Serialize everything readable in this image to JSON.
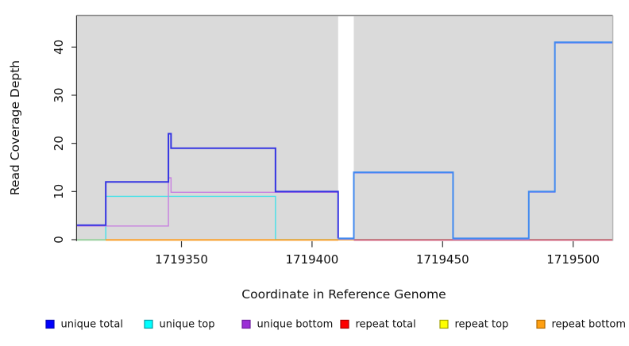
{
  "chart_data": {
    "type": "line",
    "subtype": "step-coverage",
    "title": "",
    "xlabel": "Coordinate in Reference Genome",
    "ylabel": "Read Coverage Depth",
    "xlim": [
      1719310,
      1719515
    ],
    "ylim": [
      0,
      46.5
    ],
    "x_ticks": [
      1719350,
      1719400,
      1719450,
      1719500
    ],
    "y_ticks": [
      0,
      10,
      20,
      30,
      40
    ],
    "grid": false,
    "legend_position": "bottom",
    "plot_background": "#dadada",
    "masked_region": {
      "x_start": 1719410,
      "x_end": 1719416,
      "color": "#ffffff"
    },
    "series": [
      {
        "name": "unique total",
        "legend_color": "#0000fe",
        "legend_border": "#0909b4",
        "line_color": "#3535e2",
        "line_color_right": "#4189f0",
        "line_width": 2,
        "steps": [
          [
            1719310,
            3
          ],
          [
            1719321,
            12
          ],
          [
            1719345,
            22
          ],
          [
            1719346,
            19
          ],
          [
            1719386,
            10
          ],
          [
            1719410,
            0
          ],
          [
            1719416,
            14
          ],
          [
            1719454,
            0
          ],
          [
            1719483,
            10
          ],
          [
            1719493,
            41
          ]
        ],
        "x_end": 1719515
      },
      {
        "name": "unique top",
        "legend_color": "#00ffff",
        "legend_border": "#0a9aa0",
        "line_color": "#45e2e8",
        "line_width": 1.4,
        "steps": [
          [
            1719310,
            0
          ],
          [
            1719321,
            9
          ],
          [
            1719386,
            0
          ]
        ],
        "x_end": 1719515
      },
      {
        "name": "unique bottom",
        "legend_color": "#9b2fd6",
        "legend_border": "#6e1f9e",
        "line_color": "#c77fe0",
        "line_color_right": "#9f97ee",
        "line_width": 1.4,
        "steps": [
          [
            1719310,
            3
          ],
          [
            1719345,
            13
          ],
          [
            1719346,
            10
          ],
          [
            1719410,
            0
          ],
          [
            1719416,
            14
          ],
          [
            1719454,
            0
          ],
          [
            1719483,
            10
          ],
          [
            1719493,
            41
          ]
        ],
        "x_end": 1719515
      },
      {
        "name": "repeat total",
        "legend_color": "#fe0000",
        "legend_border": "#a80000",
        "line_color": "#d0506e",
        "line_width": 1.4,
        "steps": [
          [
            1719310,
            0
          ]
        ],
        "x_end": 1719515
      },
      {
        "name": "repeat top",
        "legend_color": "#ffff00",
        "legend_border": "#a0a000",
        "line_color": "#e8e84a",
        "line_width": 1.4,
        "steps": [
          [
            1719310,
            0
          ]
        ],
        "x_end": 1719515
      },
      {
        "name": "repeat bottom",
        "legend_color": "#ffa012",
        "legend_border": "#b26a00",
        "line_color": "#ff9d1e",
        "line_width": 1.6,
        "steps": [
          [
            1719310,
            0
          ]
        ],
        "x_end": 1719515
      }
    ],
    "zero_line_segments": [
      {
        "x_start": 1719310,
        "x_end": 1719321,
        "color": "#9fd6a4"
      },
      {
        "x_start": 1719321,
        "x_end": 1719410,
        "color": "#ff9d1e"
      },
      {
        "x_start": 1719416,
        "x_end": 1719515,
        "color": "#d0506e"
      }
    ]
  },
  "legend": {
    "items": [
      {
        "label": "unique total"
      },
      {
        "label": "unique top"
      },
      {
        "label": "unique bottom"
      },
      {
        "label": "repeat total"
      },
      {
        "label": "repeat top"
      },
      {
        "label": "repeat bottom"
      }
    ]
  }
}
